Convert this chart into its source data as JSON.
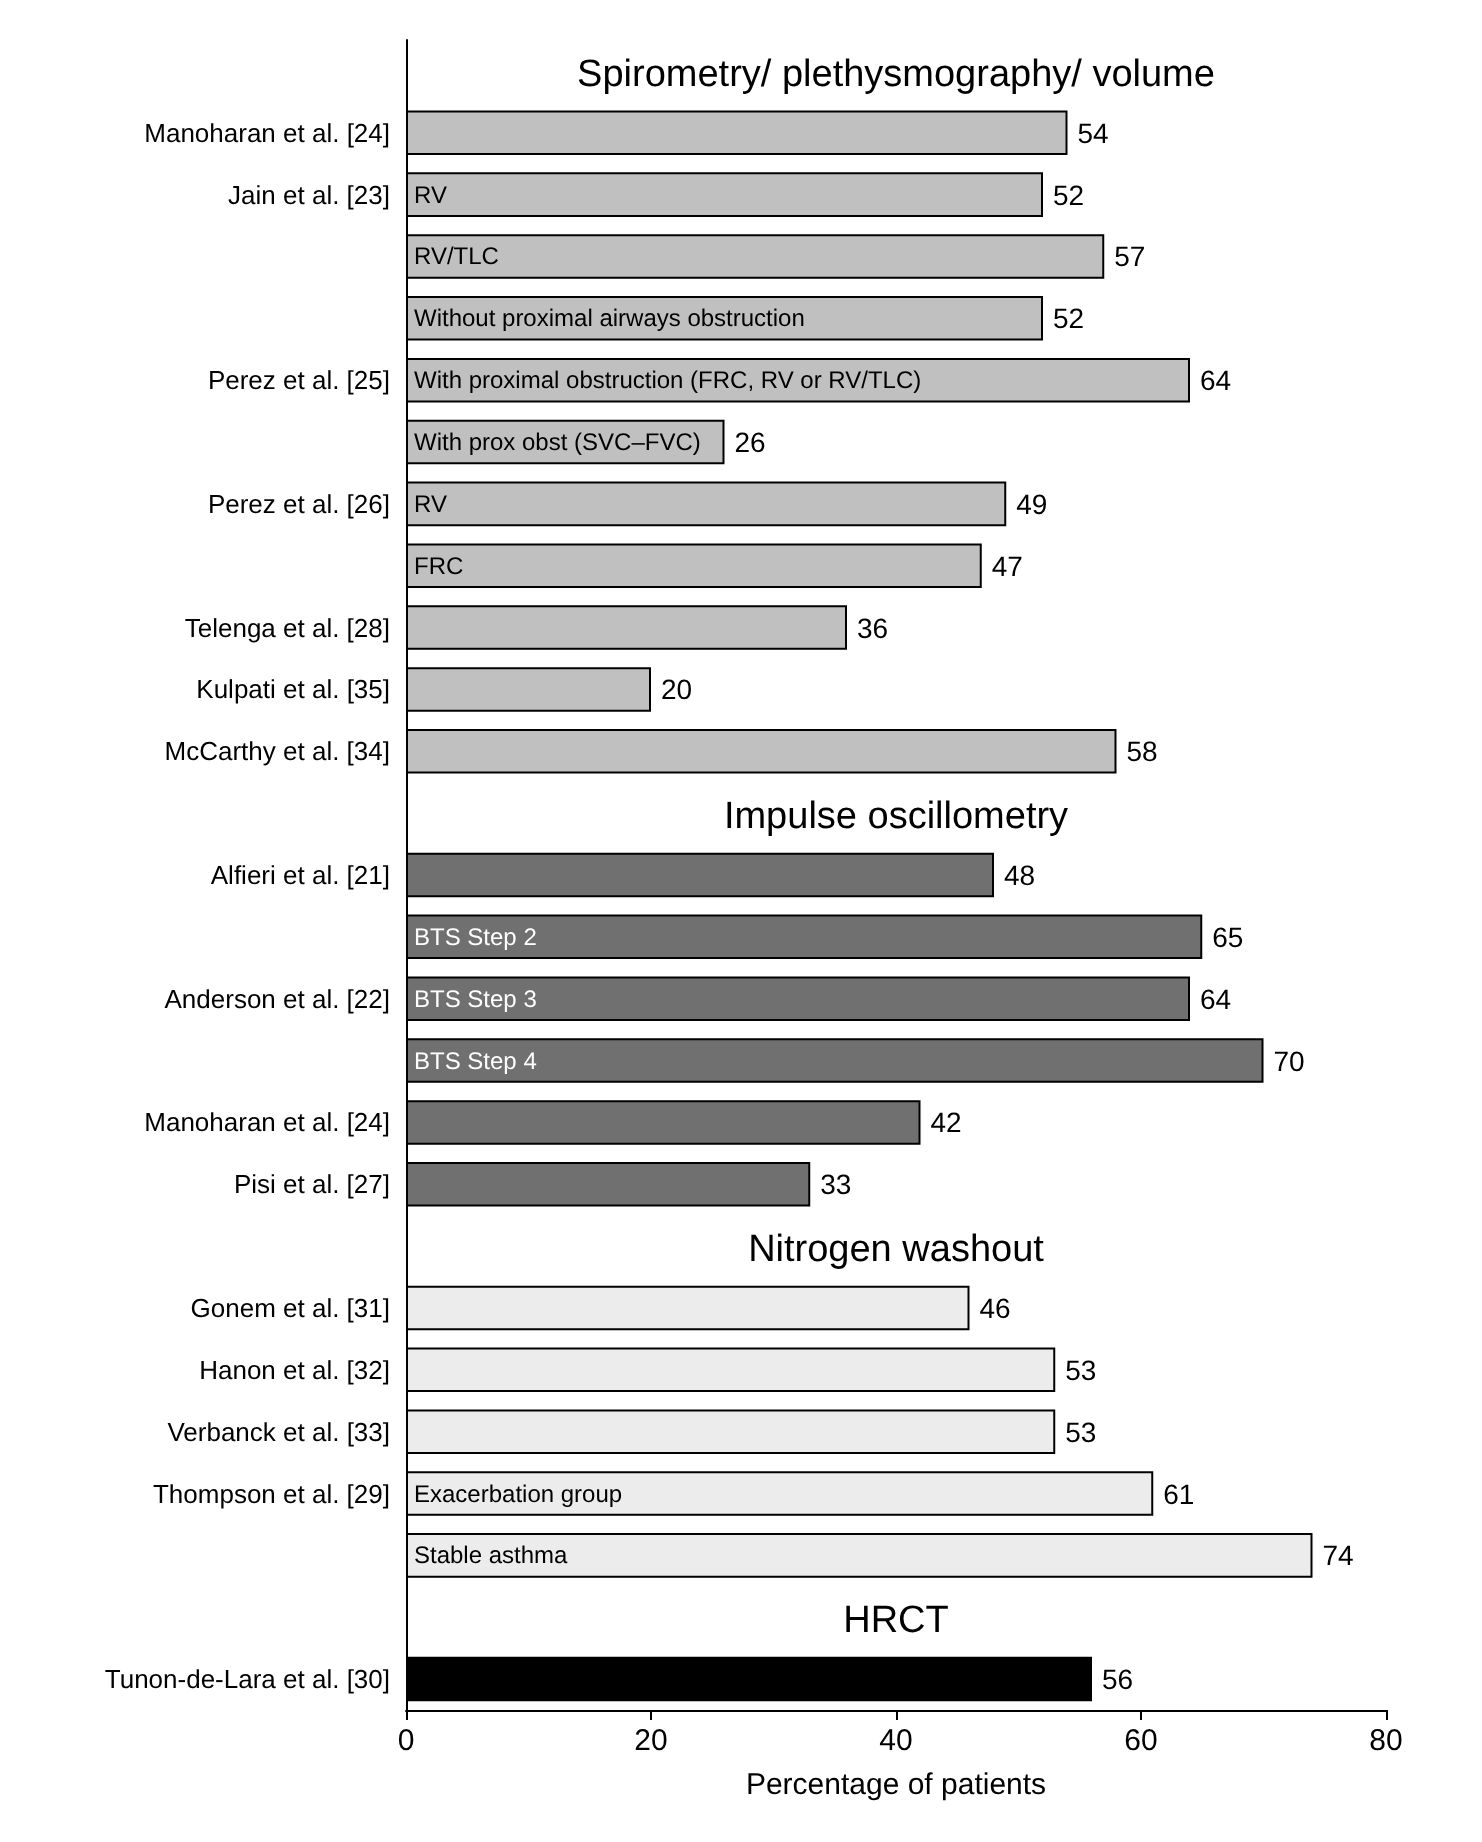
{
  "chart_data": {
    "type": "bar",
    "orientation": "horizontal",
    "xlabel": "Percentage of patients",
    "xlim": [
      0,
      80
    ],
    "xticks": [
      0,
      20,
      40,
      60,
      80
    ],
    "grid": false,
    "legend": false,
    "data_labels": true,
    "categories": [
      null,
      "Manoharan et al. [24]",
      "Jain et al. [23]",
      null,
      null,
      "Perez et al. [25]",
      null,
      "Perez et al. [26]",
      null,
      "Telenga et al. [28]",
      "Kulpati et al. [35]",
      "McCarthy et al. [34]",
      null,
      "Alfieri et al. [21]",
      null,
      "Anderson et al. [22]",
      null,
      "Manoharan et al. [24]",
      "Pisi et al. [27]",
      null,
      "Gonem et al. [31]",
      "Hanon et al. [32]",
      "Verbanck et al. [33]",
      "Thompson et al. [29]",
      null,
      null,
      "Tunon-de-Lara et al. [30]"
    ],
    "annotations": [
      "Spirometry/ plethysmography/ volume",
      "Impulse oscillometry",
      "Nitrogen washout",
      "HRCT"
    ],
    "series": [
      {
        "color": "#c0c0c0",
        "values": [
          null,
          54,
          null,
          null,
          null,
          null,
          null,
          null,
          null,
          36,
          20,
          58,
          null,
          null,
          null,
          null,
          null,
          null,
          null,
          null,
          null,
          null,
          null,
          null,
          null,
          null,
          null
        ]
      },
      {
        "name": "RV",
        "color": "#c0c0c0",
        "values": [
          null,
          null,
          52,
          null,
          null,
          null,
          null,
          null,
          null,
          null,
          null,
          null,
          null,
          null,
          null,
          null,
          null,
          null,
          null,
          null,
          null,
          null,
          null,
          null,
          null,
          null,
          null
        ]
      },
      {
        "name": "RV/TLC",
        "color": "#c0c0c0",
        "values": [
          null,
          null,
          null,
          57,
          null,
          null,
          null,
          null,
          null,
          null,
          null,
          null,
          null,
          null,
          null,
          null,
          null,
          null,
          null,
          null,
          null,
          null,
          null,
          null,
          null,
          null,
          null
        ]
      },
      {
        "name": "Without proximal airways obstruction",
        "color": "#c0c0c0",
        "values": [
          null,
          null,
          null,
          null,
          52,
          null,
          null,
          null,
          null,
          null,
          null,
          null,
          null,
          null,
          null,
          null,
          null,
          null,
          null,
          null,
          null,
          null,
          null,
          null,
          null,
          null,
          null
        ]
      },
      {
        "name": "With proximal obstruction (FRC, RV or RV/TLC)",
        "color": "#c0c0c0",
        "values": [
          null,
          null,
          null,
          null,
          null,
          64,
          null,
          null,
          null,
          null,
          null,
          null,
          null,
          null,
          null,
          null,
          null,
          null,
          null,
          null,
          null,
          null,
          null,
          null,
          null,
          null,
          null
        ]
      },
      {
        "name": "With prox obst (SVC–FVC)",
        "color": "#c0c0c0",
        "values": [
          null,
          null,
          null,
          null,
          null,
          null,
          26,
          null,
          null,
          null,
          null,
          null,
          null,
          null,
          null,
          null,
          null,
          null,
          null,
          null,
          null,
          null,
          null,
          null,
          null,
          null,
          null
        ]
      },
      {
        "name": "RV",
        "color": "#c0c0c0",
        "values": [
          null,
          null,
          null,
          null,
          null,
          null,
          null,
          49,
          null,
          null,
          null,
          null,
          null,
          null,
          null,
          null,
          null,
          null,
          null,
          null,
          null,
          null,
          null,
          null,
          null,
          null,
          null
        ]
      },
      {
        "name": "FRC",
        "color": "#c0c0c0",
        "values": [
          null,
          null,
          null,
          null,
          null,
          null,
          null,
          null,
          47,
          null,
          null,
          null,
          null,
          null,
          null,
          null,
          null,
          null,
          null,
          null,
          null,
          null,
          null,
          null,
          null,
          null,
          null
        ]
      },
      {
        "color": "#707070",
        "values": [
          null,
          null,
          null,
          null,
          null,
          null,
          null,
          null,
          null,
          null,
          null,
          null,
          null,
          48,
          null,
          null,
          null,
          42,
          33,
          null,
          null,
          null,
          null,
          null,
          null,
          null,
          null
        ]
      },
      {
        "name": "BTS Step 2",
        "color": "#707070",
        "values": [
          null,
          null,
          null,
          null,
          null,
          null,
          null,
          null,
          null,
          null,
          null,
          null,
          null,
          null,
          65,
          null,
          null,
          null,
          null,
          null,
          null,
          null,
          null,
          null,
          null,
          null,
          null
        ]
      },
      {
        "name": "BTS Step 3",
        "color": "#707070",
        "values": [
          null,
          null,
          null,
          null,
          null,
          null,
          null,
          null,
          null,
          null,
          null,
          null,
          null,
          null,
          null,
          64,
          null,
          null,
          null,
          null,
          null,
          null,
          null,
          null,
          null,
          null,
          null
        ]
      },
      {
        "name": "BTS Step 4",
        "color": "#707070",
        "values": [
          null,
          null,
          null,
          null,
          null,
          null,
          null,
          null,
          null,
          null,
          null,
          null,
          null,
          null,
          null,
          null,
          70,
          null,
          null,
          null,
          null,
          null,
          null,
          null,
          null,
          null,
          null
        ]
      },
      {
        "color": "#ececec",
        "values": [
          null,
          null,
          null,
          null,
          null,
          null,
          null,
          null,
          null,
          null,
          null,
          null,
          null,
          null,
          null,
          null,
          null,
          null,
          null,
          null,
          46,
          53,
          53,
          null,
          null,
          null,
          null
        ]
      },
      {
        "name": "Exacerbation group",
        "color": "#ececec",
        "values": [
          null,
          null,
          null,
          null,
          null,
          null,
          null,
          null,
          null,
          null,
          null,
          null,
          null,
          null,
          null,
          null,
          null,
          null,
          null,
          null,
          null,
          null,
          null,
          61,
          null,
          null,
          null
        ]
      },
      {
        "name": "Stable asthma",
        "color": "#ececec",
        "values": [
          null,
          null,
          null,
          null,
          null,
          null,
          null,
          null,
          null,
          null,
          null,
          null,
          null,
          null,
          null,
          null,
          null,
          null,
          null,
          null,
          null,
          null,
          null,
          null,
          74,
          null,
          null
        ]
      },
      {
        "color": "#000000",
        "values": [
          null,
          null,
          null,
          null,
          null,
          null,
          null,
          null,
          null,
          null,
          null,
          null,
          null,
          null,
          null,
          null,
          null,
          null,
          null,
          null,
          null,
          null,
          null,
          null,
          null,
          null,
          56
        ]
      }
    ]
  }
}
